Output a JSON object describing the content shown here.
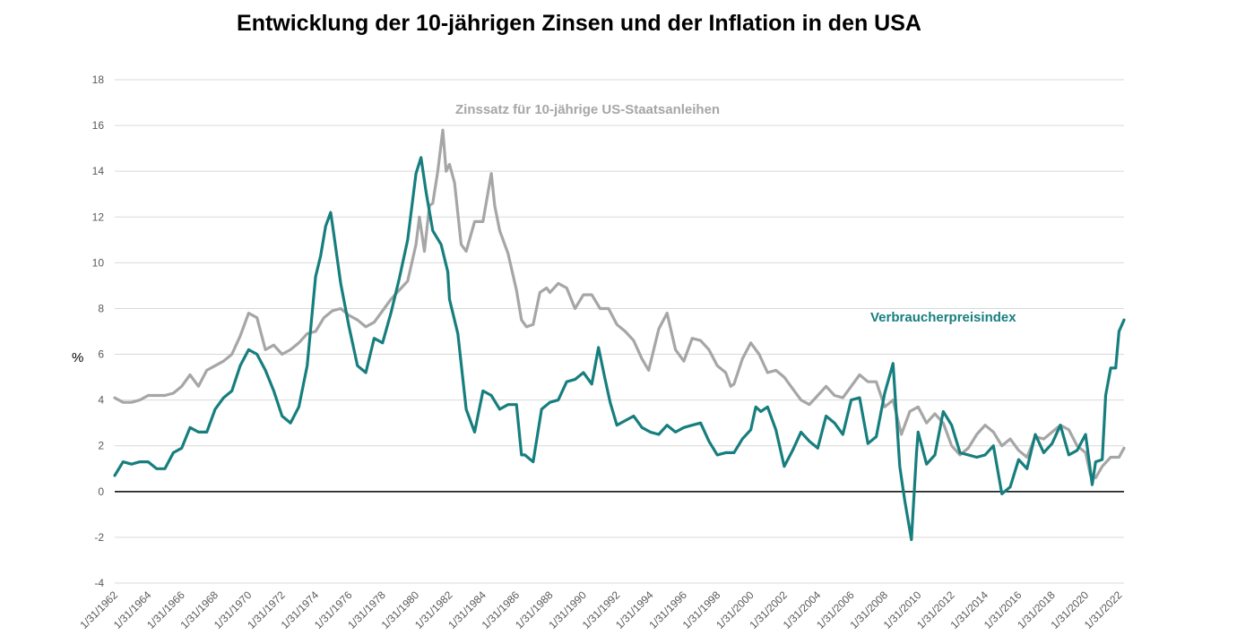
{
  "chart_data": {
    "type": "line",
    "title": "Entwicklung der 10-jährigen Zinsen und der Inflation in den USA",
    "ylabel": "%",
    "xlabel": "",
    "ylim": [
      -4,
      18
    ],
    "yticks": [
      -4,
      -2,
      0,
      2,
      4,
      6,
      8,
      10,
      12,
      14,
      16,
      18
    ],
    "xlim": [
      1962.0,
      2022.3
    ],
    "xtick_labels": [
      "1/31/1962",
      "1/31/1964",
      "1/31/1966",
      "1/31/1968",
      "1/31/1970",
      "1/31/1972",
      "1/31/1974",
      "1/31/1976",
      "1/31/1978",
      "1/31/1980",
      "1/31/1982",
      "1/31/1984",
      "1/31/1986",
      "1/31/1988",
      "1/31/1990",
      "1/31/1992",
      "1/31/1994",
      "1/31/1996",
      "1/31/1998",
      "1/31/2000",
      "1/31/2002",
      "1/31/2004",
      "1/31/2006",
      "1/31/2008",
      "1/31/2010",
      "1/31/2012",
      "1/31/2014",
      "1/31/2016",
      "1/31/2018",
      "1/31/2020",
      "1/31/2022"
    ],
    "grid": true,
    "legend": "inline",
    "series": [
      {
        "name": "Zinssatz für 10-jährige US-Staatsanleihen",
        "color": "#a6a6a6",
        "x": [
          1962.0,
          1962.5,
          1963.0,
          1963.5,
          1964.0,
          1964.5,
          1965.0,
          1965.5,
          1966.0,
          1966.5,
          1967.0,
          1967.5,
          1968.0,
          1968.5,
          1969.0,
          1969.5,
          1970.0,
          1970.5,
          1971.0,
          1971.5,
          1972.0,
          1972.5,
          1973.0,
          1973.5,
          1974.0,
          1974.5,
          1975.0,
          1975.5,
          1976.0,
          1976.5,
          1977.0,
          1977.5,
          1978.0,
          1978.5,
          1979.0,
          1979.5,
          1980.0,
          1980.2,
          1980.5,
          1980.8,
          1981.0,
          1981.3,
          1981.6,
          1981.8,
          1982.0,
          1982.3,
          1982.7,
          1983.0,
          1983.5,
          1984.0,
          1984.5,
          1984.7,
          1985.0,
          1985.5,
          1986.0,
          1986.3,
          1986.6,
          1987.0,
          1987.4,
          1987.8,
          1988.0,
          1988.5,
          1989.0,
          1989.5,
          1990.0,
          1990.5,
          1991.0,
          1991.5,
          1992.0,
          1992.5,
          1993.0,
          1993.5,
          1993.9,
          1994.5,
          1995.0,
          1995.5,
          1996.0,
          1996.5,
          1997.0,
          1997.5,
          1998.0,
          1998.5,
          1998.8,
          1999.0,
          1999.5,
          2000.0,
          2000.5,
          2001.0,
          2001.5,
          2002.0,
          2002.5,
          2003.0,
          2003.5,
          2004.0,
          2004.5,
          2005.0,
          2005.5,
          2006.0,
          2006.5,
          2007.0,
          2007.5,
          2008.0,
          2008.5,
          2009.0,
          2009.5,
          2010.0,
          2010.5,
          2011.0,
          2011.5,
          2012.0,
          2012.5,
          2013.0,
          2013.5,
          2014.0,
          2014.5,
          2015.0,
          2015.5,
          2016.0,
          2016.5,
          2017.0,
          2017.5,
          2018.0,
          2018.5,
          2019.0,
          2019.5,
          2020.0,
          2020.3,
          2020.6,
          2021.0,
          2021.5,
          2022.0,
          2022.3
        ],
        "values": [
          4.1,
          3.9,
          3.9,
          4.0,
          4.2,
          4.2,
          4.2,
          4.3,
          4.6,
          5.1,
          4.6,
          5.3,
          5.5,
          5.7,
          6.0,
          6.8,
          7.8,
          7.6,
          6.2,
          6.4,
          6.0,
          6.2,
          6.5,
          6.9,
          7.0,
          7.6,
          7.9,
          8.0,
          7.7,
          7.5,
          7.2,
          7.4,
          7.9,
          8.4,
          8.8,
          9.2,
          10.8,
          12.0,
          10.5,
          12.5,
          12.6,
          14.0,
          15.8,
          14.0,
          14.3,
          13.5,
          10.8,
          10.5,
          11.8,
          11.8,
          13.9,
          12.5,
          11.4,
          10.4,
          8.8,
          7.5,
          7.2,
          7.3,
          8.7,
          8.9,
          8.7,
          9.1,
          8.9,
          8.0,
          8.6,
          8.6,
          8.0,
          8.0,
          7.3,
          7.0,
          6.6,
          5.8,
          5.3,
          7.1,
          7.8,
          6.2,
          5.7,
          6.7,
          6.6,
          6.2,
          5.5,
          5.2,
          4.6,
          4.7,
          5.8,
          6.5,
          6.0,
          5.2,
          5.3,
          5.0,
          4.5,
          4.0,
          3.8,
          4.2,
          4.6,
          4.2,
          4.1,
          4.6,
          5.1,
          4.8,
          4.8,
          3.7,
          4.0,
          2.5,
          3.5,
          3.7,
          3.0,
          3.4,
          3.0,
          2.0,
          1.6,
          1.9,
          2.5,
          2.9,
          2.6,
          2.0,
          2.3,
          1.8,
          1.5,
          2.4,
          2.3,
          2.6,
          2.9,
          2.7,
          2.0,
          1.7,
          0.7,
          0.6,
          1.1,
          1.5,
          1.5,
          1.9
        ]
      },
      {
        "name": "Verbraucherpreisindex",
        "color": "#177e7e",
        "x": [
          1962.0,
          1962.5,
          1963.0,
          1963.5,
          1964.0,
          1964.5,
          1965.0,
          1965.5,
          1966.0,
          1966.5,
          1967.0,
          1967.5,
          1968.0,
          1968.5,
          1969.0,
          1969.5,
          1970.0,
          1970.5,
          1971.0,
          1971.5,
          1972.0,
          1972.5,
          1973.0,
          1973.5,
          1974.0,
          1974.3,
          1974.6,
          1974.9,
          1975.0,
          1975.5,
          1976.0,
          1976.5,
          1977.0,
          1977.5,
          1978.0,
          1978.5,
          1979.0,
          1979.5,
          1980.0,
          1980.3,
          1980.6,
          1981.0,
          1981.5,
          1981.9,
          1982.0,
          1982.5,
          1983.0,
          1983.5,
          1984.0,
          1984.5,
          1985.0,
          1985.5,
          1986.0,
          1986.3,
          1986.5,
          1987.0,
          1987.5,
          1988.0,
          1988.5,
          1989.0,
          1989.5,
          1990.0,
          1990.5,
          1990.9,
          1991.3,
          1991.6,
          1992.0,
          1992.5,
          1993.0,
          1993.5,
          1994.0,
          1994.5,
          1995.0,
          1995.5,
          1996.0,
          1996.5,
          1997.0,
          1997.5,
          1998.0,
          1998.5,
          1999.0,
          1999.5,
          2000.0,
          2000.3,
          2000.6,
          2001.0,
          2001.5,
          2002.0,
          2002.5,
          2003.0,
          2003.5,
          2004.0,
          2004.5,
          2005.0,
          2005.5,
          2006.0,
          2006.5,
          2007.0,
          2007.5,
          2008.0,
          2008.5,
          2008.9,
          2009.2,
          2009.6,
          2009.9,
          2010.0,
          2010.5,
          2011.0,
          2011.5,
          2012.0,
          2012.5,
          2013.0,
          2013.5,
          2014.0,
          2014.5,
          2015.0,
          2015.5,
          2016.0,
          2016.5,
          2017.0,
          2017.5,
          2018.0,
          2018.5,
          2019.0,
          2019.5,
          2020.0,
          2020.4,
          2020.6,
          2021.0,
          2021.2,
          2021.5,
          2021.8,
          2022.0,
          2022.3
        ],
        "values": [
          0.7,
          1.3,
          1.2,
          1.3,
          1.3,
          1.0,
          1.0,
          1.7,
          1.9,
          2.8,
          2.6,
          2.6,
          3.6,
          4.1,
          4.4,
          5.5,
          6.2,
          6.0,
          5.3,
          4.4,
          3.3,
          3.0,
          3.7,
          5.5,
          9.4,
          10.3,
          11.6,
          12.2,
          11.7,
          9.1,
          7.2,
          5.5,
          5.2,
          6.7,
          6.5,
          7.8,
          9.3,
          11.0,
          13.9,
          14.6,
          13.1,
          11.4,
          10.8,
          9.6,
          8.4,
          6.9,
          3.6,
          2.6,
          4.4,
          4.2,
          3.6,
          3.8,
          3.8,
          1.6,
          1.6,
          1.3,
          3.6,
          3.9,
          4.0,
          4.8,
          4.9,
          5.2,
          4.7,
          6.3,
          4.9,
          3.9,
          2.9,
          3.1,
          3.3,
          2.8,
          2.6,
          2.5,
          2.9,
          2.6,
          2.8,
          2.9,
          3.0,
          2.2,
          1.6,
          1.7,
          1.7,
          2.3,
          2.7,
          3.7,
          3.5,
          3.7,
          2.7,
          1.1,
          1.8,
          2.6,
          2.2,
          1.9,
          3.3,
          3.0,
          2.5,
          4.0,
          4.1,
          2.1,
          2.4,
          4.3,
          5.6,
          1.1,
          -0.4,
          -2.1,
          1.7,
          2.6,
          1.2,
          1.6,
          3.5,
          2.9,
          1.7,
          1.6,
          1.5,
          1.6,
          2.0,
          -0.1,
          0.2,
          1.4,
          1.0,
          2.5,
          1.7,
          2.1,
          2.9,
          1.6,
          1.8,
          2.5,
          0.3,
          1.3,
          1.4,
          4.2,
          5.4,
          5.4,
          7.0,
          7.5
        ]
      }
    ],
    "annotations": [
      {
        "text": "Zinssatz für 10-jährige US-Staatsanleihen",
        "color": "#a6a6a6"
      },
      {
        "text": "Verbraucherpreisindex",
        "color": "#177e7e"
      }
    ]
  }
}
